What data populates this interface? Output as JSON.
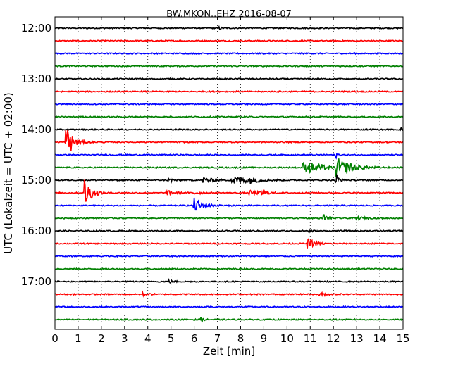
{
  "chart_data": {
    "type": "line",
    "title": "BW.MKON..EHZ 2016-08-07",
    "xlabel": "Zeit  [min]",
    "ylabel": "UTC (Lokalzeit = UTC + 02:00)",
    "xlim": [
      0,
      15
    ],
    "x_ticks": [
      "0",
      "1",
      "2",
      "3",
      "4",
      "5",
      "6",
      "7",
      "8",
      "9",
      "10",
      "11",
      "12",
      "13",
      "14",
      "15"
    ],
    "y_tick_labels": [
      "12:00",
      "13:00",
      "14:00",
      "15:00",
      "16:00",
      "17:00"
    ],
    "grid": "vertical dotted",
    "trace_colors": [
      "#000000",
      "#ff0000",
      "#0000ff",
      "#008000"
    ],
    "traces": [
      {
        "start": "12:00",
        "events": [
          {
            "x": 7.1,
            "amp": 0.2,
            "w": 0.1
          }
        ]
      },
      {
        "start": "12:15",
        "events": []
      },
      {
        "start": "12:30",
        "events": []
      },
      {
        "start": "12:45",
        "events": []
      },
      {
        "start": "13:00",
        "events": [
          {
            "x": 8.0,
            "amp": 0.12,
            "w": 0.1
          }
        ]
      },
      {
        "start": "13:15",
        "events": []
      },
      {
        "start": "13:30",
        "events": []
      },
      {
        "start": "13:45",
        "events": []
      },
      {
        "start": "14:00",
        "events": [
          {
            "x": 14.95,
            "amp": 0.3,
            "w": 0.1
          }
        ]
      },
      {
        "start": "14:15",
        "events": [
          {
            "x": 0.5,
            "amp": 3.2,
            "w": 0.25
          }
        ]
      },
      {
        "start": "14:30",
        "events": [
          {
            "x": 12.1,
            "amp": 0.6,
            "w": 0.1
          }
        ]
      },
      {
        "start": "14:45",
        "events": [
          {
            "x": 10.7,
            "amp": 0.8,
            "w": 0.3
          },
          {
            "x": 11.0,
            "amp": 0.7,
            "w": 0.3
          },
          {
            "x": 11.4,
            "amp": 0.4,
            "w": 0.3
          },
          {
            "x": 12.1,
            "amp": 1.9,
            "w": 0.5
          },
          {
            "x": 12.6,
            "amp": 0.3,
            "w": 0.4
          }
        ]
      },
      {
        "start": "15:00",
        "events": [
          {
            "x": 4.9,
            "amp": 0.3,
            "w": 0.3
          },
          {
            "x": 6.4,
            "amp": 0.5,
            "w": 0.4
          },
          {
            "x": 7.6,
            "amp": 0.9,
            "w": 0.6
          },
          {
            "x": 8.3,
            "amp": 0.4,
            "w": 0.4
          },
          {
            "x": 12.1,
            "amp": 1.6,
            "w": 0.1
          }
        ]
      },
      {
        "start": "15:15",
        "events": [
          {
            "x": 1.3,
            "amp": 2.8,
            "w": 0.25
          },
          {
            "x": 4.8,
            "amp": 0.4,
            "w": 0.3
          },
          {
            "x": 6.0,
            "amp": 0.3,
            "w": 0.3
          },
          {
            "x": 8.4,
            "amp": 0.35,
            "w": 0.4
          },
          {
            "x": 8.9,
            "amp": 0.4,
            "w": 0.2
          }
        ]
      },
      {
        "start": "15:30",
        "events": [
          {
            "x": 6.0,
            "amp": 1.3,
            "w": 0.35
          }
        ]
      },
      {
        "start": "15:45",
        "events": [
          {
            "x": 11.6,
            "amp": 0.7,
            "w": 0.15
          },
          {
            "x": 13.0,
            "amp": 0.3,
            "w": 0.3
          }
        ]
      },
      {
        "start": "16:00",
        "events": [
          {
            "x": 10.9,
            "amp": 0.5,
            "w": 0.12
          }
        ]
      },
      {
        "start": "16:15",
        "events": [
          {
            "x": 10.9,
            "amp": 0.9,
            "w": 0.3
          }
        ]
      },
      {
        "start": "16:30",
        "events": []
      },
      {
        "start": "16:45",
        "events": []
      },
      {
        "start": "17:00",
        "events": [
          {
            "x": 4.9,
            "amp": 0.3,
            "w": 0.2
          }
        ]
      },
      {
        "start": "17:15",
        "events": [
          {
            "x": 3.8,
            "amp": 0.25,
            "w": 0.2
          },
          {
            "x": 11.4,
            "amp": 0.3,
            "w": 0.3
          }
        ]
      },
      {
        "start": "17:30",
        "events": []
      },
      {
        "start": "17:45",
        "events": [
          {
            "x": 6.3,
            "amp": 0.35,
            "w": 0.1
          }
        ]
      }
    ]
  }
}
